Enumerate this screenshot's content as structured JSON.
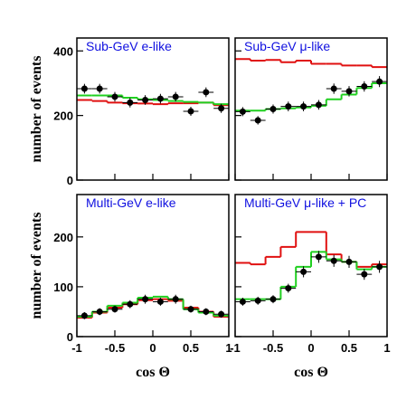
{
  "chart_data": [
    {
      "type": "histogram",
      "title": "Sub-GeV e-like",
      "ylabel": "number of events",
      "bins": [
        -1,
        -0.8,
        -0.6,
        -0.4,
        -0.2,
        0,
        0.2,
        0.4,
        0.6,
        0.8,
        1
      ],
      "xlim": [
        -1,
        1
      ],
      "xticks": [
        -1,
        -0.5,
        0,
        0.5,
        1
      ],
      "show_xtick_labels": false,
      "ylim": [
        0,
        440
      ],
      "yticks": [
        0,
        200,
        400
      ],
      "show_ytick_labels": true,
      "title_color": "#1010e0",
      "series": [
        {
          "style": "step",
          "color": "#e01010",
          "values": [
            248,
            245,
            240,
            238,
            237,
            235,
            238,
            238,
            240,
            232
          ]
        },
        {
          "style": "step",
          "color": "#20d020",
          "values": [
            262,
            262,
            262,
            255,
            250,
            248,
            245,
            242,
            240,
            235
          ]
        },
        {
          "style": "points",
          "color": "#000000",
          "values": [
            283,
            283,
            258,
            240,
            248,
            252,
            258,
            213,
            272,
            222
          ],
          "errors": [
            15,
            15,
            15,
            15,
            15,
            15,
            15,
            14,
            15,
            14
          ]
        }
      ]
    },
    {
      "type": "histogram",
      "title": "Sub-GeV μ-like",
      "bins": [
        -1,
        -0.8,
        -0.6,
        -0.4,
        -0.2,
        0,
        0.2,
        0.4,
        0.6,
        0.8,
        1
      ],
      "xlim": [
        -1,
        1
      ],
      "xticks": [
        -1,
        -0.5,
        0,
        0.5,
        1
      ],
      "show_xtick_labels": false,
      "ylim": [
        0,
        440
      ],
      "yticks": [
        0,
        200,
        400
      ],
      "show_ytick_labels": false,
      "title_color": "#1010e0",
      "series": [
        {
          "style": "step",
          "color": "#e01010",
          "values": [
            375,
            370,
            372,
            365,
            370,
            360,
            360,
            355,
            355,
            350
          ]
        },
        {
          "style": "step",
          "color": "#20d020",
          "values": [
            215,
            215,
            220,
            222,
            225,
            230,
            250,
            265,
            285,
            300
          ]
        },
        {
          "style": "points",
          "color": "#000000",
          "values": [
            212,
            185,
            220,
            228,
            228,
            233,
            283,
            275,
            290,
            305
          ],
          "errors": [
            14,
            13,
            14,
            15,
            15,
            15,
            16,
            16,
            16,
            17
          ]
        }
      ]
    },
    {
      "type": "histogram",
      "title": "Multi-GeV e-like",
      "ylabel": "number of events",
      "xlabel": "cos Θ",
      "bins": [
        -1,
        -0.8,
        -0.6,
        -0.4,
        -0.2,
        0,
        0.2,
        0.4,
        0.6,
        0.8,
        1
      ],
      "xlim": [
        -1,
        1
      ],
      "xticks": [
        -1,
        -0.5,
        0,
        0.5,
        1
      ],
      "show_xtick_labels": true,
      "ylim": [
        0,
        285
      ],
      "yticks": [
        0,
        100,
        200
      ],
      "show_ytick_labels": true,
      "title_color": "#1010e0",
      "series": [
        {
          "style": "step",
          "color": "#e01010",
          "values": [
            38,
            48,
            58,
            65,
            73,
            75,
            72,
            58,
            50,
            40
          ]
        },
        {
          "style": "step",
          "color": "#20d020",
          "values": [
            40,
            50,
            62,
            68,
            78,
            80,
            75,
            55,
            48,
            42
          ]
        },
        {
          "style": "points",
          "color": "#000000",
          "values": [
            42,
            50,
            55,
            65,
            75,
            70,
            75,
            55,
            50,
            45
          ],
          "errors": [
            7,
            7,
            7,
            8,
            9,
            8,
            9,
            7,
            7,
            7
          ]
        }
      ]
    },
    {
      "type": "histogram",
      "title": "Multi-GeV μ-like + PC",
      "xlabel": "cos Θ",
      "bins": [
        -1,
        -0.8,
        -0.6,
        -0.4,
        -0.2,
        0,
        0.2,
        0.4,
        0.6,
        0.8,
        1
      ],
      "xlim": [
        -1,
        1
      ],
      "xticks": [
        -1,
        -0.5,
        0,
        0.5,
        1
      ],
      "show_xtick_labels": true,
      "ylim": [
        0,
        285
      ],
      "yticks": [
        0,
        100,
        200
      ],
      "show_ytick_labels": false,
      "title_color": "#1010e0",
      "series": [
        {
          "style": "step",
          "color": "#e01010",
          "values": [
            148,
            145,
            160,
            180,
            210,
            210,
            165,
            150,
            140,
            145
          ]
        },
        {
          "style": "step",
          "color": "#20d020",
          "values": [
            75,
            75,
            75,
            100,
            140,
            170,
            155,
            150,
            135,
            140
          ]
        },
        {
          "style": "points",
          "color": "#000000",
          "values": [
            70,
            72,
            75,
            97,
            130,
            160,
            152,
            150,
            125,
            140
          ],
          "errors": [
            8,
            8,
            8,
            9,
            11,
            12,
            12,
            12,
            11,
            12
          ]
        }
      ]
    }
  ]
}
